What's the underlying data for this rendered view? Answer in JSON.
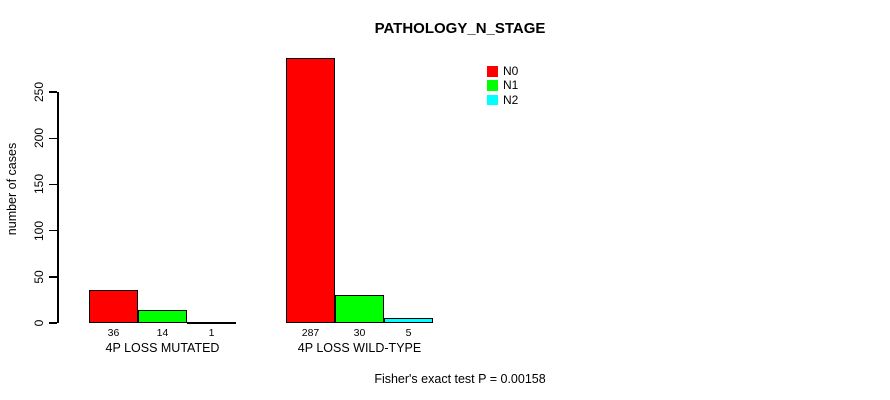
{
  "chart_data": {
    "type": "bar",
    "title": "PATHOLOGY_N_STAGE",
    "ylabel": "number of cases",
    "xlabel": "",
    "categories": [
      "4P LOSS MUTATED",
      "4P LOSS WILD-TYPE"
    ],
    "series": [
      {
        "name": "N0",
        "color": "#ff0000",
        "values": [
          36,
          287
        ]
      },
      {
        "name": "N1",
        "color": "#00ff00",
        "values": [
          14,
          30
        ]
      },
      {
        "name": "N2",
        "color": "#00ffff",
        "values": [
          1,
          5
        ]
      }
    ],
    "yticks": [
      0,
      50,
      100,
      150,
      200,
      250
    ],
    "ylim": [
      0,
      290
    ],
    "grid": false,
    "show_bar_values": true,
    "legend": {
      "position": "top-right",
      "entries": [
        {
          "label": "N0",
          "color": "#ff0000"
        },
        {
          "label": "N1",
          "color": "#00ff00"
        },
        {
          "label": "N2",
          "color": "#00ffff"
        }
      ]
    },
    "annotation": "Fisher's exact test P = 0.00158"
  }
}
